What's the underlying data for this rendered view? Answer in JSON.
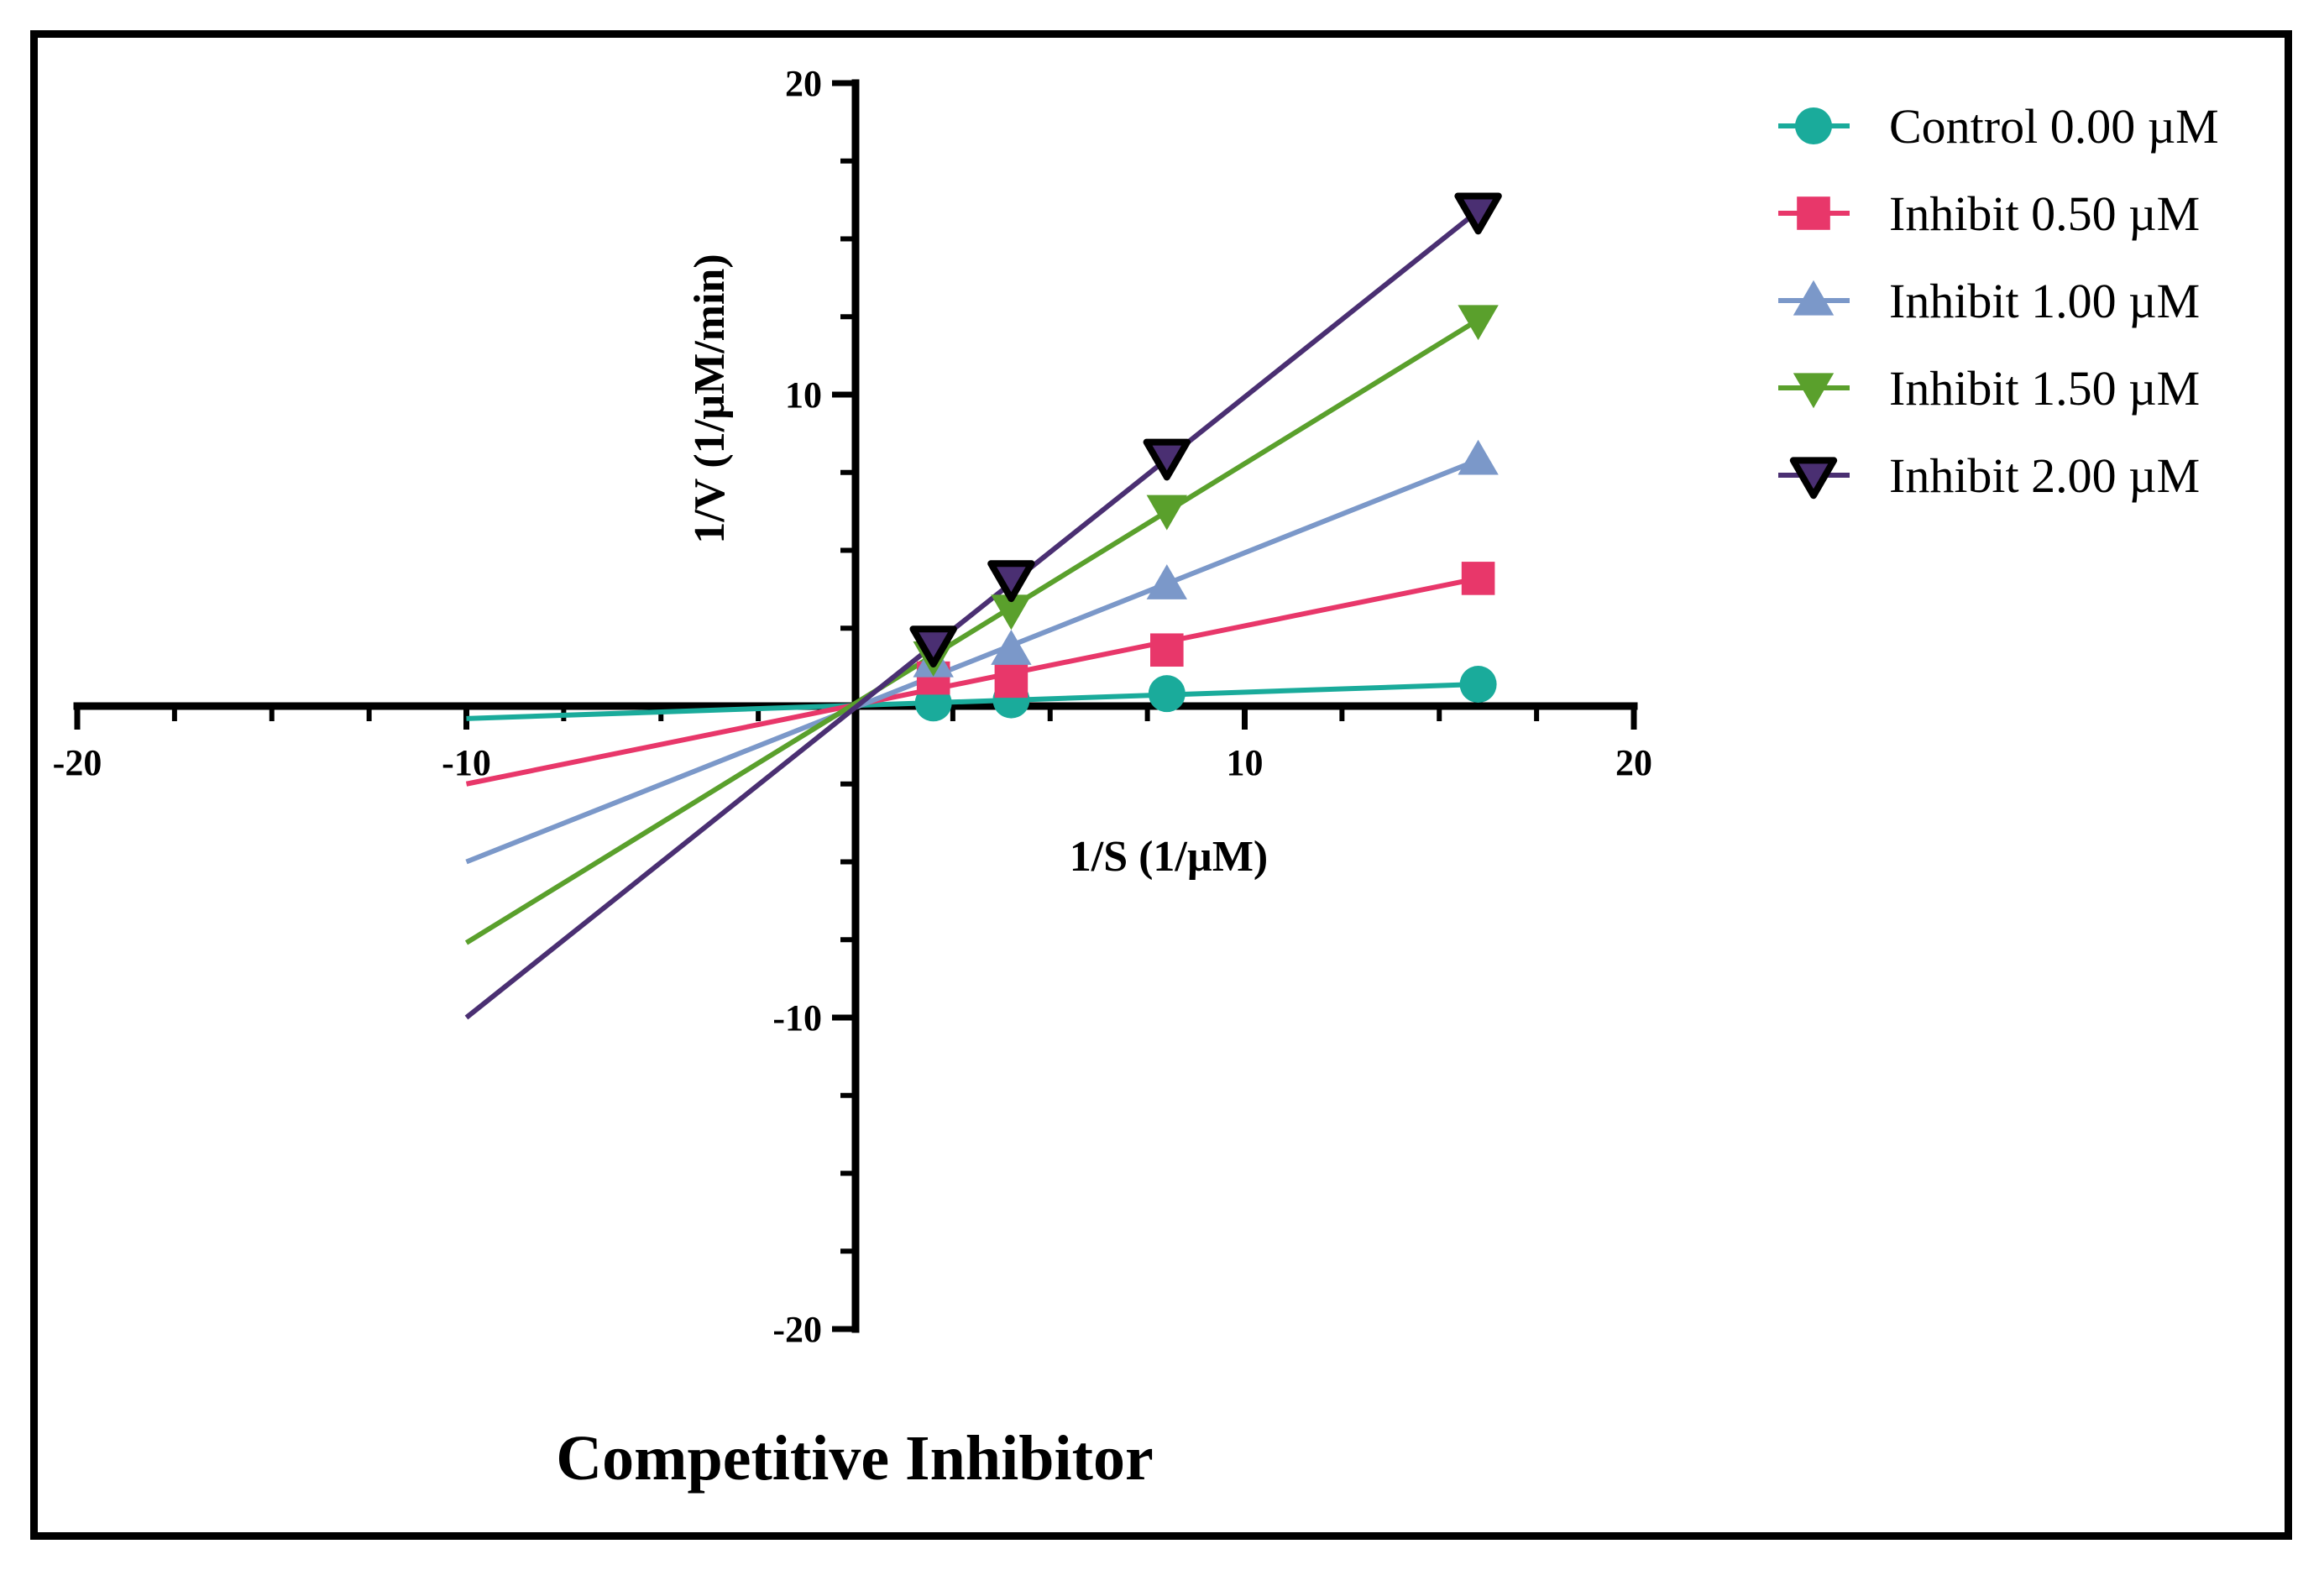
{
  "chart_data": {
    "type": "line",
    "title": "Competitive Inhibitor",
    "xlabel": "1/S (1/µM)",
    "ylabel": "1/V (1/µM/min)",
    "xlim": [
      -20,
      20
    ],
    "ylim": [
      -20,
      20
    ],
    "xticks": [
      -20,
      -10,
      10,
      20
    ],
    "yticks": [
      20,
      10,
      -10,
      -20
    ],
    "legend_position": "top-right",
    "series": [
      {
        "name": "Control 0.00 µM",
        "color": "#1aab9b",
        "marker": "circle",
        "x": [
          2,
          4,
          8,
          16
        ],
        "y": [
          0.1,
          0.2,
          0.4,
          0.7
        ],
        "fit": {
          "x": [
            -10,
            16
          ],
          "y": [
            -0.4,
            0.7
          ]
        }
      },
      {
        "name": "Inhibit 0.50 µM",
        "color": "#e8376a",
        "marker": "square",
        "x": [
          2,
          4,
          8,
          16
        ],
        "y": [
          0.9,
          0.8,
          1.8,
          4.1
        ],
        "fit": {
          "x": [
            -10,
            16
          ],
          "y": [
            -2.5,
            4.1
          ]
        }
      },
      {
        "name": "Inhibit 1.00 µM",
        "color": "#7b98c9",
        "marker": "triangle-up",
        "x": [
          2,
          4,
          8,
          16
        ],
        "y": [
          1.4,
          1.8,
          3.9,
          7.9
        ],
        "fit": {
          "x": [
            -10,
            16
          ],
          "y": [
            -5.0,
            7.9
          ]
        }
      },
      {
        "name": "Inhibit 1.50 µM",
        "color": "#5aa02c",
        "marker": "triangle-down",
        "x": [
          2,
          4,
          8,
          16
        ],
        "y": [
          1.6,
          3.1,
          6.3,
          12.4
        ],
        "fit": {
          "x": [
            -10,
            16
          ],
          "y": [
            -7.6,
            12.4
          ]
        }
      },
      {
        "name": "Inhibit 2.00 µM",
        "color": "#4a2f72",
        "marker": "triangle-down-open",
        "x": [
          2,
          4,
          8,
          16
        ],
        "y": [
          2.0,
          4.1,
          8.0,
          15.9
        ],
        "fit": {
          "x": [
            -10,
            16
          ],
          "y": [
            -10.0,
            15.9
          ]
        }
      }
    ]
  }
}
